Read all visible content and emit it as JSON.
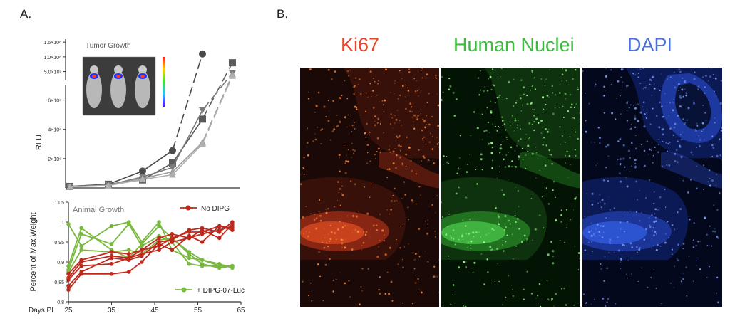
{
  "panels": {
    "a_label": "A.",
    "b_label": "B."
  },
  "colors": {
    "tumor_line": "#555555",
    "no_dipg": "#c0281c",
    "dipg": "#78b83c",
    "ki67": "#e8462c",
    "human_nuclei": "#3fbc3f",
    "dapi": "#4a72d8"
  },
  "chart_data": [
    {
      "type": "line",
      "title": "Tumor Growth",
      "xlabel": "",
      "ylabel": "RLU",
      "ytick_labels_upper": [
        "1.5×10⁸",
        "1.0×10⁸",
        "5.0×10⁷"
      ],
      "ytick_labels_lower": [
        "6×10⁶",
        "4×10⁶",
        "2×10⁶"
      ],
      "axis_break": true,
      "x": [
        25,
        34,
        42,
        49,
        56,
        63
      ],
      "series": [
        {
          "marker": "circle",
          "y": [
            100000,
            250000,
            1150000,
            2550000,
            110000000,
            null
          ]
        },
        {
          "marker": "square",
          "y": [
            100000,
            250000,
            550000,
            1700000,
            4700000,
            80000000
          ]
        },
        {
          "marker": "triangle-down",
          "y": [
            90000,
            200000,
            750000,
            1400000,
            5300000,
            45000000
          ]
        },
        {
          "marker": "triangle-up",
          "y": [
            80000,
            180000,
            650000,
            1100000,
            3100000,
            40000000
          ]
        },
        {
          "marker": "triangle-up",
          "y": [
            60000,
            160000,
            580000,
            900000,
            3000000,
            35000000
          ]
        }
      ],
      "inset_image": "bioluminescence mice"
    },
    {
      "type": "line",
      "title": "Animal Growth",
      "xlabel": "Days PI",
      "ylabel": "Percent of Max Weight",
      "xlim": [
        25,
        65
      ],
      "ylim": [
        0.8,
        1.05
      ],
      "xticks": [
        25,
        35,
        45,
        55,
        65
      ],
      "yticks": [
        "0,8",
        "0,85",
        "0,9",
        "0,95",
        "1",
        "1,05"
      ],
      "legend": [
        "No DIPG",
        "+ DIPG-07-Luc"
      ],
      "x": [
        25,
        28,
        35,
        39,
        42,
        46,
        49,
        53,
        56,
        60,
        63
      ],
      "no_dipg": [
        [
          0.83,
          0.87,
          0.87,
          0.875,
          0.9,
          0.945,
          0.93,
          0.965,
          0.95,
          0.99,
          0.985
        ],
        [
          0.86,
          0.9,
          0.915,
          0.91,
          0.92,
          0.93,
          0.95,
          0.96,
          0.97,
          0.98,
          0.99
        ],
        [
          0.87,
          0.905,
          0.925,
          0.92,
          0.93,
          0.96,
          0.97,
          0.96,
          0.98,
          0.96,
          0.995
        ],
        [
          0.855,
          0.89,
          0.895,
          0.91,
          0.93,
          0.94,
          0.96,
          0.975,
          0.975,
          0.99,
          0.98
        ],
        [
          0.84,
          0.875,
          0.91,
          0.905,
          0.915,
          0.95,
          0.955,
          0.98,
          0.985,
          0.975,
          1.0
        ]
      ],
      "dipg": [
        [
          0.995,
          0.94,
          0.99,
          1.0,
          0.95,
          1.0,
          0.93,
          0.91,
          0.905,
          0.89,
          0.89
        ],
        [
          0.89,
          0.985,
          0.93,
          0.91,
          0.945,
          0.99,
          0.96,
          0.925,
          0.905,
          0.895,
          0.885
        ],
        [
          0.88,
          0.97,
          0.945,
          0.995,
          0.94,
          0.965,
          0.95,
          0.895,
          0.89,
          0.89,
          0.888
        ],
        [
          0.875,
          0.93,
          0.925,
          0.93,
          0.92,
          0.955,
          0.96,
          0.92,
          0.895,
          0.885,
          0.89
        ]
      ]
    }
  ],
  "micrographs": [
    {
      "title": "Ki67"
    },
    {
      "title": "Human Nuclei"
    },
    {
      "title": "DAPI"
    }
  ]
}
